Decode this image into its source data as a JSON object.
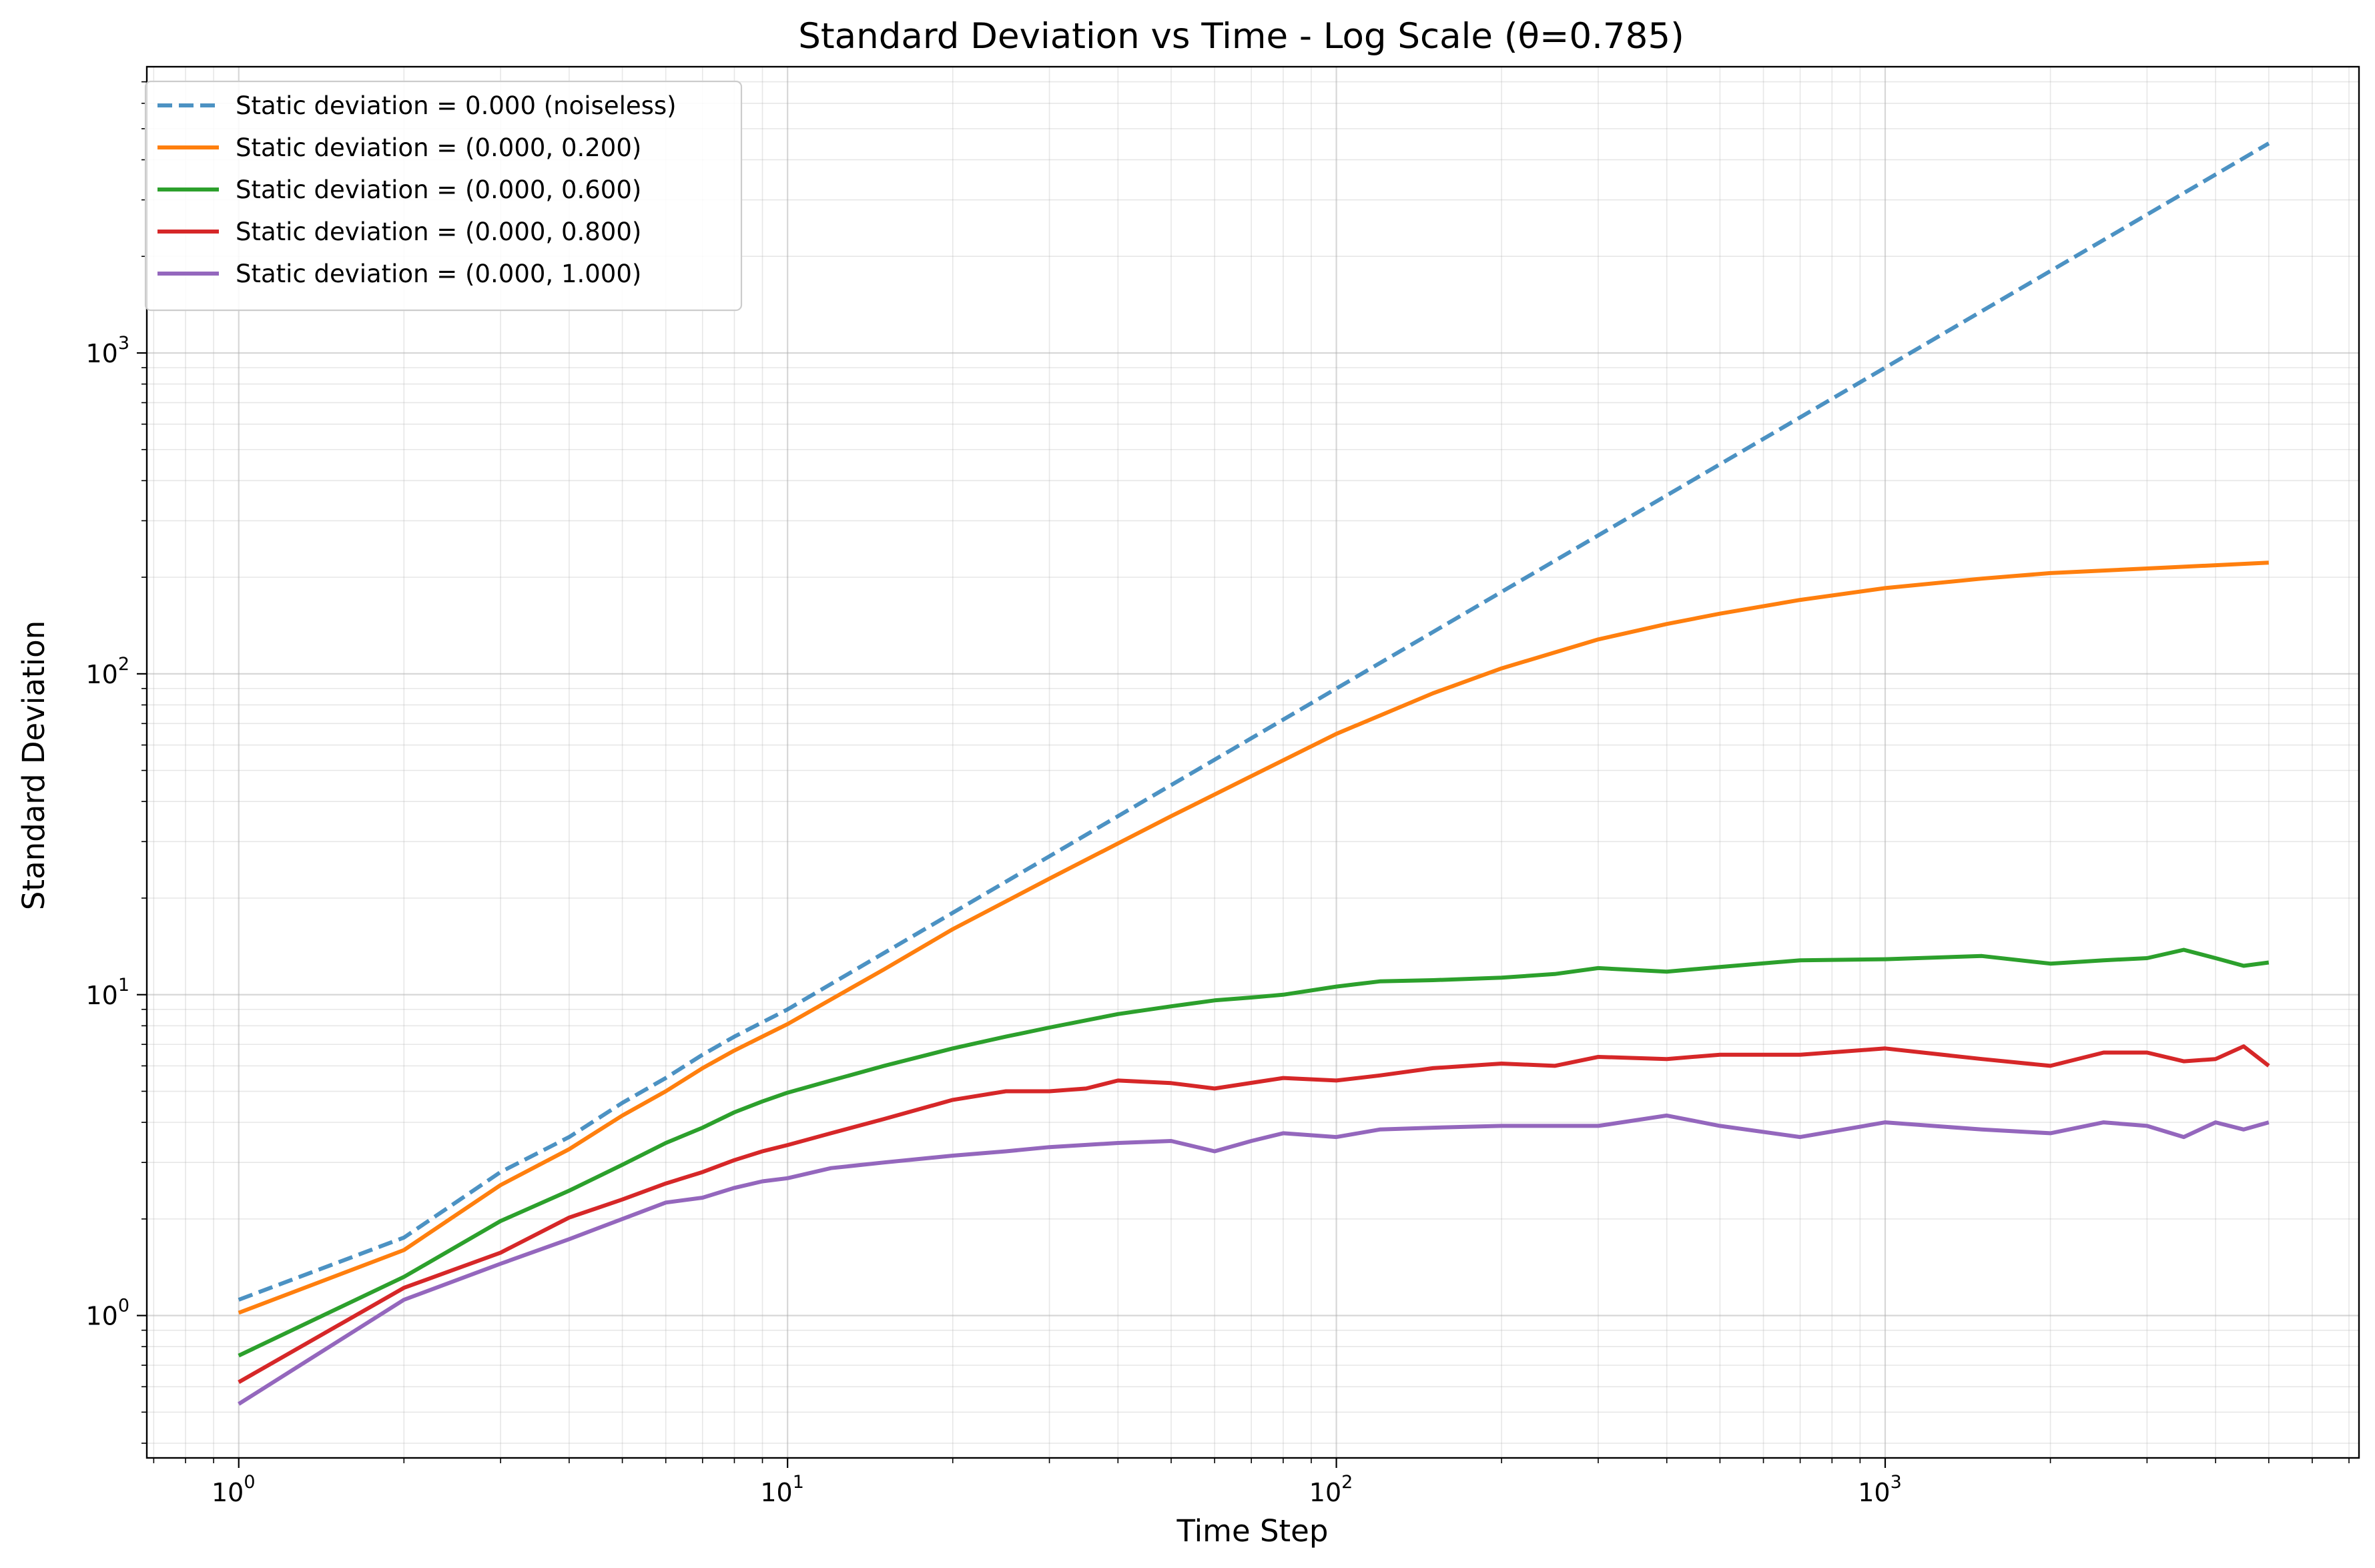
{
  "chart_data": {
    "type": "line",
    "title": "Standard Deviation vs Time - Log Scale (θ=0.785)",
    "xlabel": "Time Step",
    "ylabel": "Standard Deviation",
    "xscale": "log",
    "yscale": "log",
    "xlim": [
      0.68,
      7300
    ],
    "ylim": [
      0.36,
      7800
    ],
    "grid": true,
    "legend_position": "top-left",
    "x_ticks": [
      {
        "base": "10",
        "exp": "0",
        "value": 1
      },
      {
        "base": "10",
        "exp": "1",
        "value": 10
      },
      {
        "base": "10",
        "exp": "2",
        "value": 100
      },
      {
        "base": "10",
        "exp": "3",
        "value": 1000
      }
    ],
    "y_ticks": [
      {
        "base": "10",
        "exp": "0",
        "value": 1
      },
      {
        "base": "10",
        "exp": "1",
        "value": 10
      },
      {
        "base": "10",
        "exp": "2",
        "value": 100
      },
      {
        "base": "10",
        "exp": "3",
        "value": 1000
      }
    ],
    "series": [
      {
        "name": "Static deviation = 0.000 (noiseless)",
        "color": "#1f77b4",
        "style": "dashed",
        "x": [
          1,
          2,
          3,
          4,
          5,
          6,
          7,
          8,
          10,
          15,
          20,
          30,
          50,
          70,
          100,
          150,
          200,
          300,
          500,
          700,
          1000,
          1500,
          2000,
          3000,
          5000
        ],
        "y": [
          1.12,
          1.75,
          2.8,
          3.6,
          4.6,
          5.5,
          6.5,
          7.4,
          9.0,
          13.5,
          18,
          27,
          45,
          63,
          90,
          135,
          180,
          270,
          450,
          630,
          900,
          1350,
          1800,
          2700,
          4500
        ]
      },
      {
        "name": "Static deviation = (0.000, 0.200)",
        "color": "#ff7f0e",
        "style": "solid",
        "x": [
          1,
          2,
          3,
          4,
          5,
          6,
          7,
          8,
          10,
          15,
          20,
          30,
          50,
          70,
          100,
          150,
          200,
          300,
          400,
          500,
          700,
          1000,
          1500,
          2000,
          3000,
          5000
        ],
        "y": [
          1.02,
          1.6,
          2.55,
          3.3,
          4.2,
          5.0,
          5.9,
          6.7,
          8.1,
          12,
          16,
          23,
          36,
          48,
          65,
          87,
          104,
          128,
          143,
          154,
          170,
          185,
          198,
          206,
          213,
          222
        ]
      },
      {
        "name": "Static deviation = (0.000, 0.600)",
        "color": "#2ca02c",
        "style": "solid",
        "x": [
          1,
          2,
          3,
          4,
          5,
          6,
          7,
          8,
          9,
          10,
          12,
          15,
          20,
          25,
          30,
          40,
          50,
          60,
          70,
          80,
          100,
          120,
          150,
          200,
          250,
          300,
          400,
          500,
          700,
          1000,
          1500,
          2000,
          2500,
          3000,
          3500,
          4000,
          4500,
          5000
        ],
        "y": [
          0.75,
          1.32,
          1.97,
          2.45,
          2.95,
          3.45,
          3.85,
          4.3,
          4.65,
          4.95,
          5.4,
          6.0,
          6.8,
          7.4,
          7.9,
          8.7,
          9.2,
          9.6,
          9.8,
          10.0,
          10.6,
          11.0,
          11.1,
          11.3,
          11.6,
          12.1,
          11.8,
          12.2,
          12.8,
          12.9,
          13.2,
          12.5,
          12.8,
          13.0,
          13.8,
          13.0,
          12.3,
          12.6
        ]
      },
      {
        "name": "Static deviation = (0.000, 0.800)",
        "color": "#d62728",
        "style": "solid",
        "x": [
          1,
          2,
          3,
          4,
          5,
          6,
          7,
          8,
          9,
          10,
          12,
          15,
          20,
          25,
          30,
          35,
          40,
          50,
          60,
          80,
          100,
          120,
          150,
          200,
          250,
          300,
          400,
          500,
          700,
          1000,
          1500,
          2000,
          2500,
          3000,
          3500,
          4000,
          4500,
          5000
        ],
        "y": [
          0.62,
          1.22,
          1.57,
          2.02,
          2.3,
          2.58,
          2.8,
          3.05,
          3.25,
          3.4,
          3.7,
          4.1,
          4.7,
          5.0,
          5.0,
          5.1,
          5.4,
          5.3,
          5.1,
          5.5,
          5.4,
          5.6,
          5.9,
          6.1,
          6.0,
          6.4,
          6.3,
          6.5,
          6.5,
          6.8,
          6.3,
          6.0,
          6.6,
          6.6,
          6.2,
          6.3,
          6.9,
          6.0
        ]
      },
      {
        "name": "Static deviation = (0.000, 1.000)",
        "color": "#9467bd",
        "style": "solid",
        "x": [
          1,
          2,
          3,
          4,
          5,
          6,
          7,
          8,
          9,
          10,
          12,
          15,
          20,
          25,
          30,
          40,
          50,
          60,
          70,
          80,
          100,
          120,
          150,
          200,
          300,
          400,
          500,
          700,
          1000,
          1500,
          2000,
          2500,
          3000,
          3500,
          4000,
          4500,
          5000
        ],
        "y": [
          0.53,
          1.12,
          1.45,
          1.73,
          2.0,
          2.25,
          2.33,
          2.5,
          2.62,
          2.68,
          2.88,
          3.0,
          3.15,
          3.25,
          3.35,
          3.45,
          3.5,
          3.25,
          3.5,
          3.7,
          3.6,
          3.8,
          3.85,
          3.9,
          3.9,
          4.2,
          3.9,
          3.6,
          4.0,
          3.8,
          3.7,
          4.0,
          3.9,
          3.6,
          4.0,
          3.8,
          4.0
        ]
      }
    ]
  }
}
